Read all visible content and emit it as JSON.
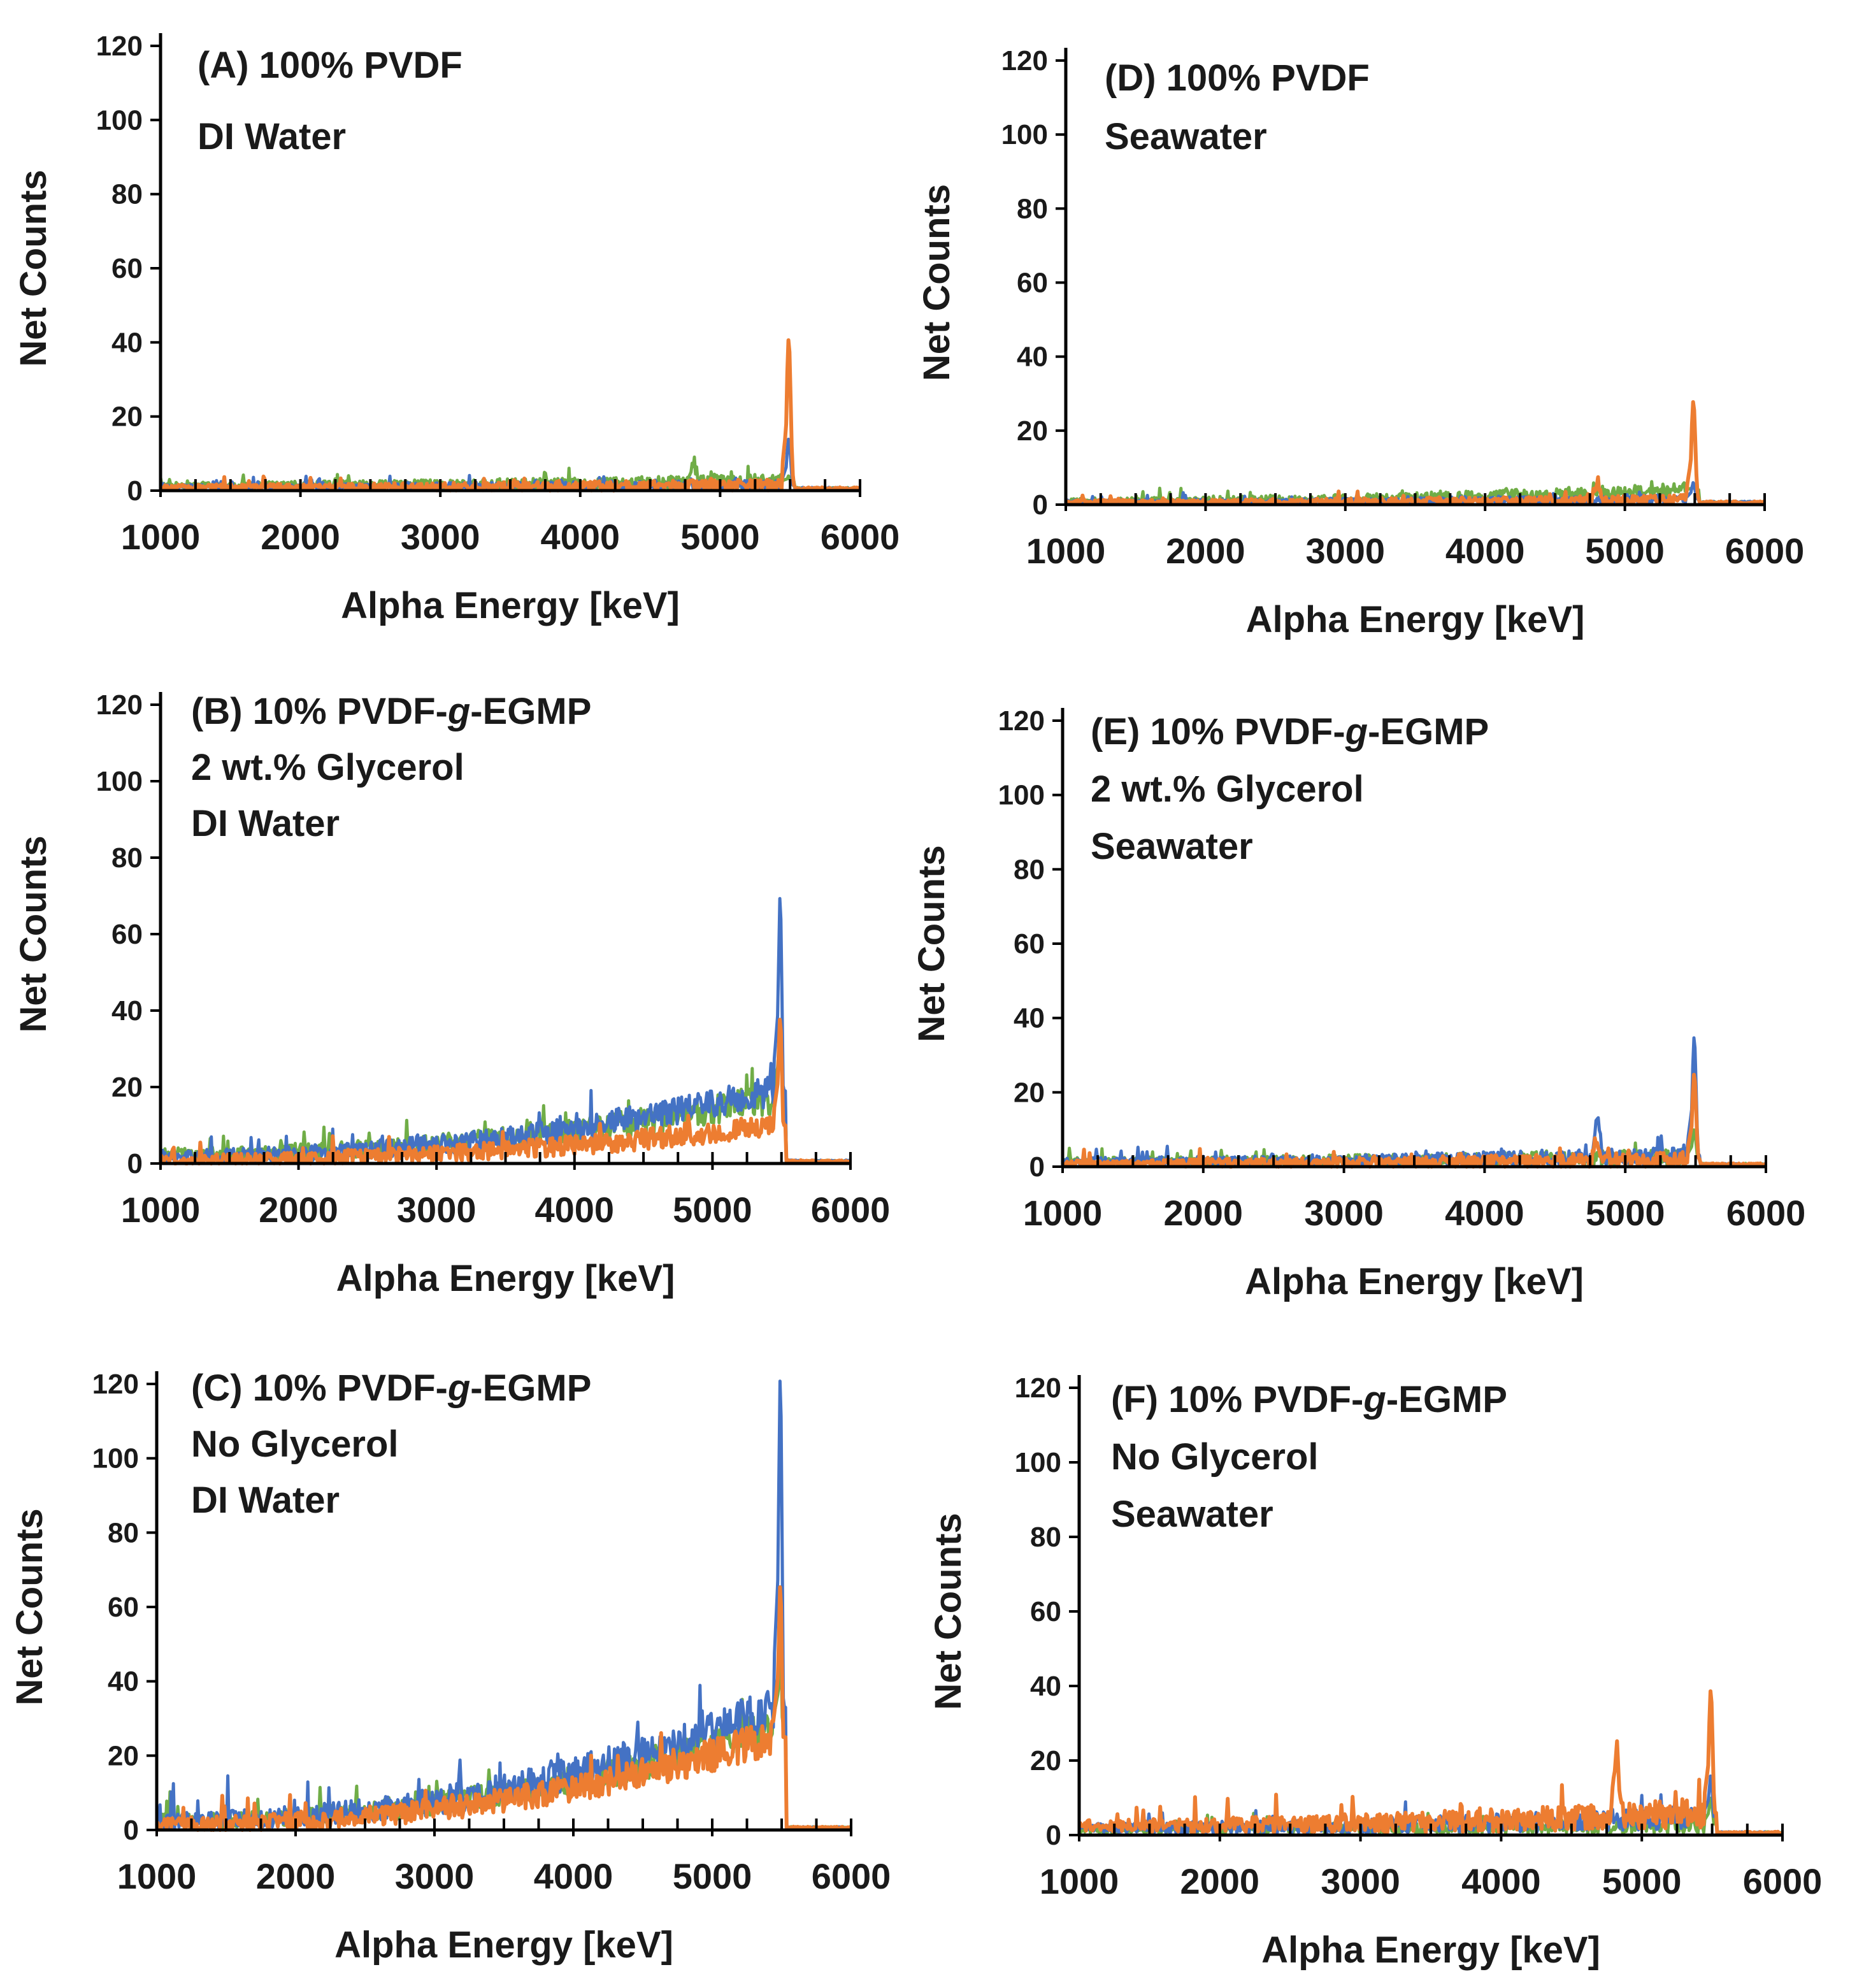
{
  "figure": {
    "series_colors": {
      "blue": "#4472c4",
      "green": "#70ad47",
      "orange": "#ed7d31"
    },
    "background": "#ffffff"
  },
  "chart_data": [
    {
      "id": "A",
      "type": "line",
      "annotation": [
        "(A) 100% PVDF",
        "DI Water"
      ],
      "xlabel": "Alpha Energy [keV]",
      "ylabel": "Net Counts",
      "xlim": [
        1000,
        6000
      ],
      "ylim": [
        0,
        120
      ],
      "xticks": [
        1000,
        2000,
        3000,
        4000,
        5000,
        6000
      ],
      "yticks": [
        0,
        20,
        40,
        60,
        80,
        100,
        120
      ],
      "peak_energy": 5490,
      "series": [
        {
          "color": "#70ad47",
          "baseline": 1.5,
          "baseline_end": 2.5,
          "noise": 2.5,
          "peak": 4,
          "sat_peak": [
            4810,
            6
          ]
        },
        {
          "color": "#4472c4",
          "baseline": 1.0,
          "baseline_end": 1.5,
          "noise": 2,
          "peak": 14
        },
        {
          "color": "#ed7d31",
          "baseline": 1.0,
          "baseline_end": 1.5,
          "noise": 2,
          "peak": 41
        }
      ]
    },
    {
      "id": "B",
      "type": "line",
      "annotation": [
        "(B) 10% PVDF-g-EGMP",
        "2 wt.% Glycerol",
        "DI Water"
      ],
      "xlabel": "Alpha Energy [keV]",
      "ylabel": "Net Counts",
      "xlim": [
        1000,
        6000
      ],
      "ylim": [
        0,
        120
      ],
      "xticks": [
        1000,
        2000,
        3000,
        4000,
        5000,
        6000
      ],
      "yticks": [
        0,
        20,
        40,
        60,
        80,
        100,
        120
      ],
      "peak_energy": 5490,
      "series": [
        {
          "color": "#70ad47",
          "baseline": 2.5,
          "baseline_end": 17,
          "noise": 5,
          "peak": 38
        },
        {
          "color": "#4472c4",
          "baseline": 2,
          "baseline_end": 19,
          "noise": 5,
          "peak": 70
        },
        {
          "color": "#ed7d31",
          "baseline": 1,
          "baseline_end": 10,
          "noise": 4,
          "peak": 38
        }
      ]
    },
    {
      "id": "C",
      "type": "line",
      "annotation": [
        "(C) 10% PVDF-g-EGMP",
        "No Glycerol",
        "DI Water"
      ],
      "xlabel": "Alpha Energy [keV]",
      "ylabel": "Net Counts",
      "xlim": [
        1000,
        6000
      ],
      "ylim": [
        0,
        120
      ],
      "xticks": [
        1000,
        2000,
        3000,
        4000,
        5000,
        6000
      ],
      "yticks": [
        0,
        20,
        40,
        60,
        80,
        100,
        120
      ],
      "peak_energy": 5490,
      "series": [
        {
          "color": "#70ad47",
          "baseline": 2.5,
          "baseline_end": 28,
          "noise": 6,
          "peak": 50
        },
        {
          "color": "#4472c4",
          "baseline": 2.5,
          "baseline_end": 33,
          "noise": 7,
          "peak": 122
        },
        {
          "color": "#ed7d31",
          "baseline": 1.5,
          "baseline_end": 25,
          "noise": 6,
          "peak": 66
        }
      ]
    },
    {
      "id": "D",
      "type": "line",
      "annotation": [
        "(D) 100% PVDF",
        "Seawater"
      ],
      "xlabel": "Alpha Energy [keV]",
      "ylabel": "Net Counts",
      "xlim": [
        1000,
        6000
      ],
      "ylim": [
        0,
        120
      ],
      "xticks": [
        1000,
        2000,
        3000,
        4000,
        5000,
        6000
      ],
      "yticks": [
        0,
        20,
        40,
        60,
        80,
        100,
        120
      ],
      "peak_energy": 5490,
      "series": [
        {
          "color": "#70ad47",
          "baseline": 1,
          "baseline_end": 4,
          "noise": 2.5,
          "peak": 5
        },
        {
          "color": "#4472c4",
          "baseline": 0.8,
          "baseline_end": 1.5,
          "noise": 1.5,
          "peak": 6
        },
        {
          "color": "#ed7d31",
          "baseline": 0.8,
          "baseline_end": 1.5,
          "noise": 1.5,
          "peak": 28,
          "sat_peak": [
            4800,
            5
          ]
        }
      ]
    },
    {
      "id": "E",
      "type": "line",
      "annotation": [
        "(E) 10% PVDF-g-EGMP",
        "2 wt.% Glycerol",
        "Seawater"
      ],
      "xlabel": "Alpha Energy [keV]",
      "ylabel": "Net Counts",
      "xlim": [
        1000,
        6000
      ],
      "ylim": [
        0,
        120
      ],
      "xticks": [
        1000,
        2000,
        3000,
        4000,
        5000,
        6000
      ],
      "yticks": [
        0,
        20,
        40,
        60,
        80,
        100,
        120
      ],
      "peak_energy": 5490,
      "series": [
        {
          "color": "#70ad47",
          "baseline": 1.5,
          "baseline_end": 2.5,
          "noise": 3,
          "peak": 10
        },
        {
          "color": "#4472c4",
          "baseline": 1.5,
          "baseline_end": 3,
          "noise": 3,
          "peak": 35,
          "sat_peak": [
            4800,
            12
          ]
        },
        {
          "color": "#ed7d31",
          "baseline": 1,
          "baseline_end": 2,
          "noise": 2.5,
          "peak": 25,
          "sat_peak": [
            4800,
            6
          ]
        }
      ]
    },
    {
      "id": "F",
      "type": "line",
      "annotation": [
        "(F) 10% PVDF-g-EGMP",
        "No Glycerol",
        "Seawater"
      ],
      "xlabel": "Alpha Energy [keV]",
      "ylabel": "Net Counts",
      "xlim": [
        1000,
        6000
      ],
      "ylim": [
        0,
        120
      ],
      "xticks": [
        1000,
        2000,
        3000,
        4000,
        5000,
        6000
      ],
      "yticks": [
        0,
        20,
        40,
        60,
        80,
        100,
        120
      ],
      "peak_energy": 5490,
      "series": [
        {
          "color": "#70ad47",
          "baseline": 1.5,
          "baseline_end": 3,
          "noise": 3,
          "peak": 10
        },
        {
          "color": "#4472c4",
          "baseline": 2,
          "baseline_end": 5,
          "noise": 4,
          "peak": 16
        },
        {
          "color": "#ed7d31",
          "baseline": 2.5,
          "baseline_end": 6,
          "noise": 5,
          "peak": 39,
          "sat_peak": [
            4820,
            20
          ]
        }
      ]
    }
  ]
}
